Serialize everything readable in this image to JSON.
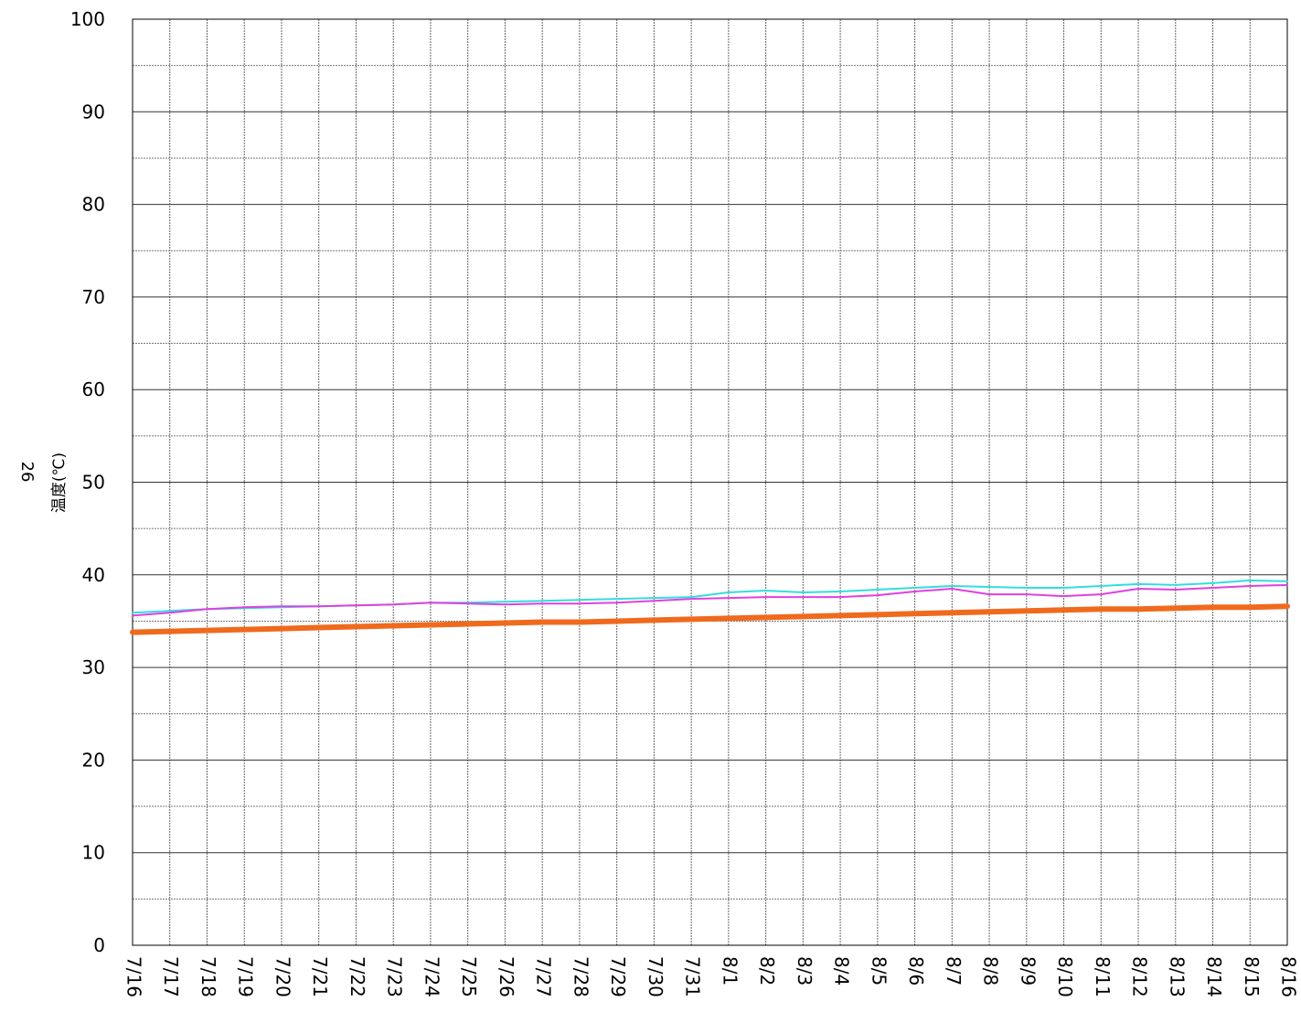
{
  "page_number": "26",
  "chart_data": {
    "type": "line",
    "title": "",
    "xlabel": "",
    "ylabel": "温度(℃)",
    "ylim": [
      0,
      100
    ],
    "yticks": [
      0,
      10,
      20,
      30,
      40,
      50,
      60,
      70,
      80,
      90,
      100
    ],
    "minor_y_gridlines": true,
    "grid": true,
    "legend": "none",
    "categories": [
      "7/16",
      "7/17",
      "7/18",
      "7/19",
      "7/20",
      "7/21",
      "7/22",
      "7/23",
      "7/24",
      "7/25",
      "7/26",
      "7/27",
      "7/28",
      "7/29",
      "7/30",
      "7/31",
      "8/1",
      "8/2",
      "8/3",
      "8/4",
      "8/5",
      "8/6",
      "8/7",
      "8/8",
      "8/9",
      "8/10",
      "8/11",
      "8/12",
      "8/13",
      "8/14",
      "8/15",
      "8/16"
    ],
    "series": [
      {
        "color": "#33DDDD",
        "width": 2,
        "values": [
          35.9,
          36.1,
          36.3,
          36.4,
          36.5,
          36.6,
          36.7,
          36.8,
          37.0,
          37.0,
          37.1,
          37.2,
          37.3,
          37.4,
          37.5,
          37.6,
          38.1,
          38.3,
          38.1,
          38.2,
          38.4,
          38.6,
          38.8,
          38.7,
          38.6,
          38.6,
          38.8,
          39.0,
          38.9,
          39.1,
          39.4,
          39.3
        ]
      },
      {
        "color": "#E040E0",
        "width": 2,
        "values": [
          35.6,
          35.9,
          36.3,
          36.5,
          36.6,
          36.6,
          36.7,
          36.8,
          37.0,
          36.9,
          36.8,
          36.9,
          36.9,
          37.0,
          37.2,
          37.4,
          37.5,
          37.6,
          37.6,
          37.6,
          37.8,
          38.2,
          38.5,
          37.9,
          37.9,
          37.7,
          37.9,
          38.5,
          38.4,
          38.6,
          38.8,
          38.9
        ]
      },
      {
        "color": "#F06A1E",
        "width": 6,
        "values": [
          33.8,
          33.9,
          34.0,
          34.1,
          34.2,
          34.3,
          34.4,
          34.5,
          34.6,
          34.7,
          34.8,
          34.9,
          34.9,
          35.0,
          35.1,
          35.2,
          35.3,
          35.4,
          35.5,
          35.6,
          35.7,
          35.8,
          35.9,
          36.0,
          36.1,
          36.2,
          36.3,
          36.3,
          36.4,
          36.5,
          36.5,
          36.6
        ]
      }
    ]
  }
}
